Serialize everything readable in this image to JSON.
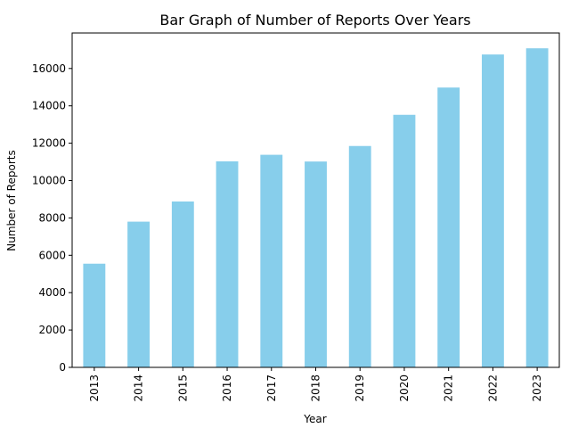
{
  "chart_data": {
    "type": "bar",
    "title": "Bar Graph of Number of Reports Over Years",
    "xlabel": "Year",
    "ylabel": "Number of Reports",
    "categories": [
      "2013",
      "2014",
      "2015",
      "2016",
      "2017",
      "2018",
      "2019",
      "2020",
      "2021",
      "2022",
      "2023"
    ],
    "values": [
      5550,
      7800,
      8880,
      11030,
      11380,
      11020,
      11850,
      13520,
      14980,
      16750,
      17080
    ],
    "ylim": [
      0,
      17900
    ],
    "yticks": [
      0,
      2000,
      4000,
      6000,
      8000,
      10000,
      12000,
      14000,
      16000
    ],
    "bar_color": "#87ceeb",
    "grid": false,
    "legend": "none"
  }
}
